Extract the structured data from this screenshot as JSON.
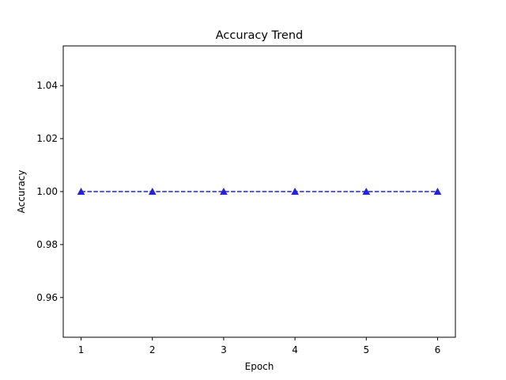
{
  "chart_data": {
    "type": "line",
    "title": "Accuracy Trend",
    "xlabel": "Epoch",
    "ylabel": "Accuracy",
    "x": [
      1,
      2,
      3,
      4,
      5,
      6
    ],
    "xticks": [
      "1",
      "2",
      "3",
      "4",
      "5",
      "6"
    ],
    "yticks": [
      "0.96",
      "0.98",
      "1.00",
      "1.02",
      "1.04"
    ],
    "xlim": [
      0.75,
      6.25
    ],
    "ylim": [
      0.945,
      1.055
    ],
    "series": [
      {
        "values": [
          1.0,
          1.0,
          1.0,
          1.0,
          1.0,
          1.0
        ],
        "color": "#2323d6",
        "line_style": "dashed",
        "marker": "triangle-up"
      }
    ],
    "grid": false,
    "legend": "none"
  }
}
